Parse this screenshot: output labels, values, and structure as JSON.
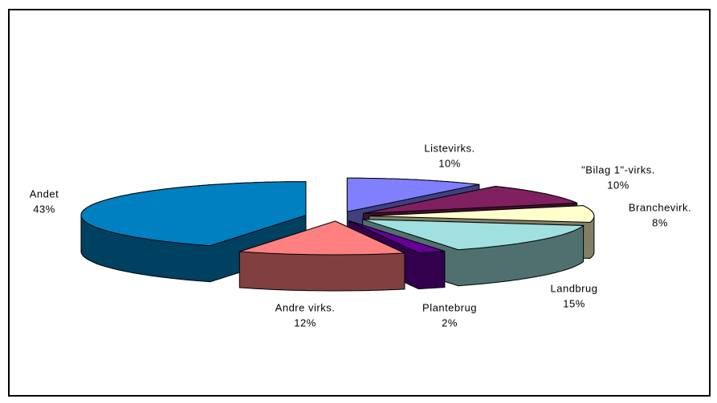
{
  "chart_data": {
    "type": "pie",
    "categories": [
      "Listevirks.",
      "\"Bilag 1\"-virks.",
      "Branchevirk.",
      "Landbrug",
      "Plantebrug",
      "Andre virks.",
      "Andet"
    ],
    "values": [
      10,
      10,
      8,
      15,
      2,
      12,
      43
    ],
    "value_labels": [
      "10%",
      "10%",
      "8%",
      "15%",
      "2%",
      "12%",
      "43%"
    ],
    "colors": [
      "#8080ff",
      "#802060",
      "#ffffcc",
      "#a0e0e0",
      "#660099",
      "#ff8080",
      "#0080c0"
    ]
  }
}
